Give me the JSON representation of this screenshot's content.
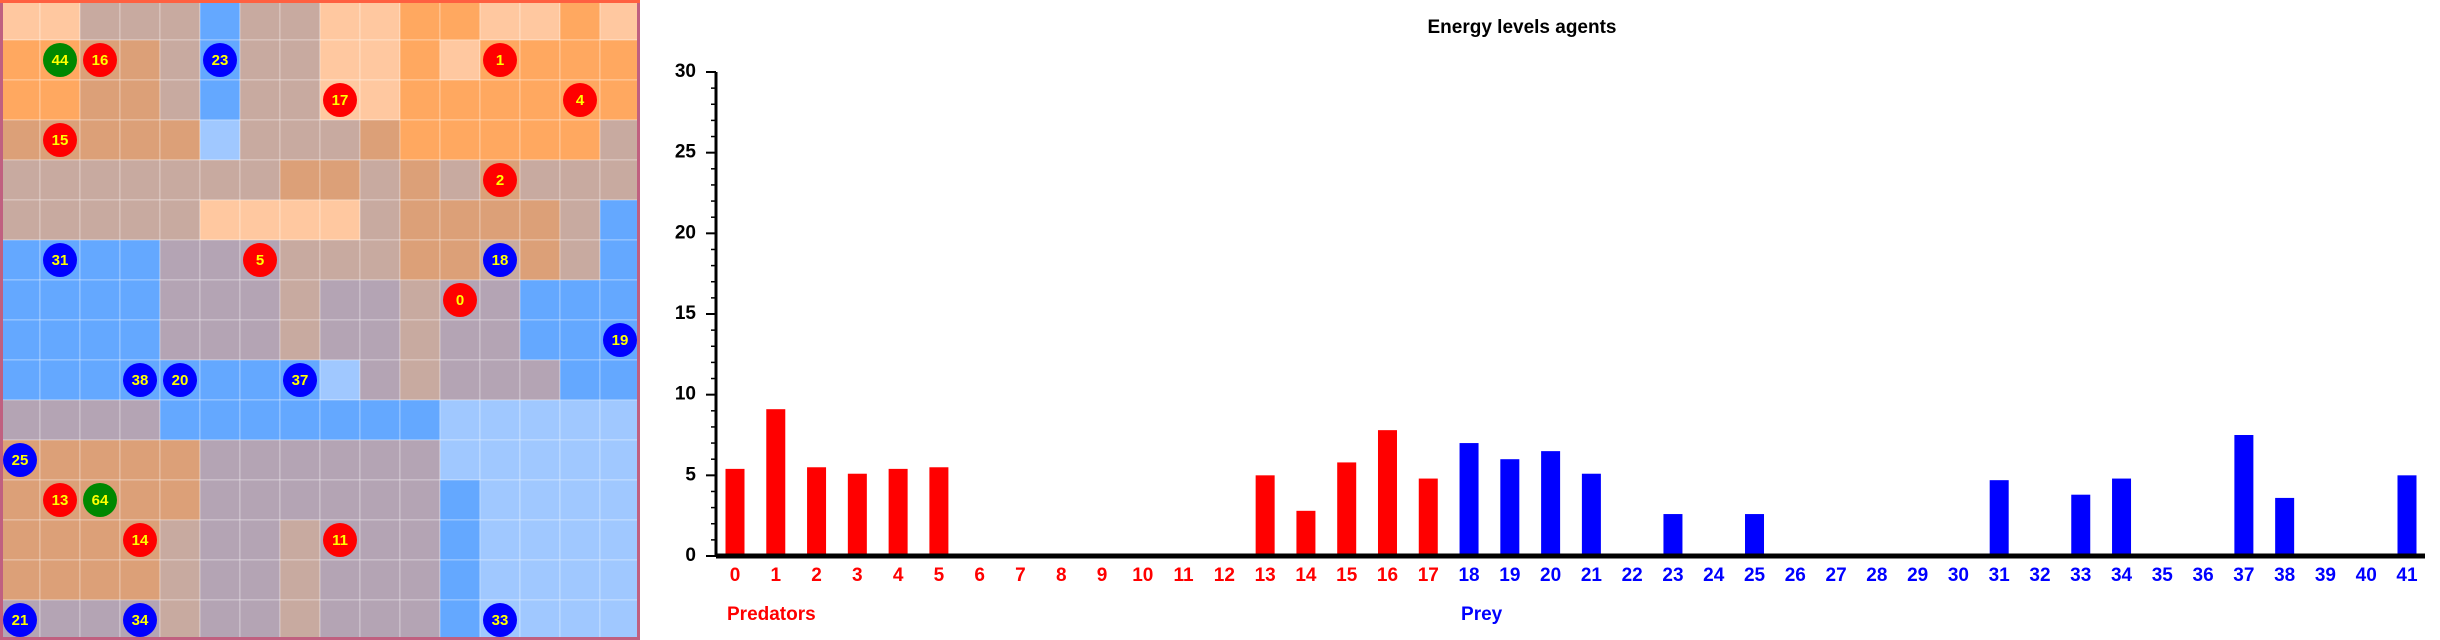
{
  "agents": [
    {
      "label": "44",
      "color": "#008800"
    },
    {
      "label": "16",
      "color": "#ff0000"
    },
    {
      "label": "23",
      "color": "#0000ff"
    },
    {
      "label": "1",
      "color": "#ff0000"
    },
    {
      "label": "17",
      "color": "#ff0000"
    },
    {
      "label": "4",
      "color": "#ff0000"
    },
    {
      "label": "15",
      "color": "#ff0000"
    },
    {
      "label": "2",
      "color": "#ff0000"
    },
    {
      "label": "31",
      "color": "#0000ff"
    },
    {
      "label": "5",
      "color": "#ff0000"
    },
    {
      "label": "18",
      "color": "#0000ff"
    },
    {
      "label": "0",
      "color": "#ff0000"
    },
    {
      "label": "19",
      "color": "#0000ff"
    },
    {
      "label": "38",
      "color": "#0000ff"
    },
    {
      "label": "20",
      "color": "#0000ff"
    },
    {
      "label": "37",
      "color": "#0000ff"
    },
    {
      "label": "25",
      "color": "#0000ff"
    },
    {
      "label": "13",
      "color": "#ff0000"
    },
    {
      "label": "64",
      "color": "#008800"
    },
    {
      "label": "14",
      "color": "#ff0000"
    },
    {
      "label": "11",
      "color": "#ff0000"
    },
    {
      "label": "21",
      "color": "#0000ff"
    },
    {
      "label": "34",
      "color": "#0000ff"
    },
    {
      "label": "33",
      "color": "#0000ff"
    }
  ],
  "chart_data": {
    "type": "bar",
    "title": "Energy levels agents",
    "categories": [
      "0",
      "1",
      "2",
      "3",
      "4",
      "5",
      "6",
      "7",
      "8",
      "9",
      "10",
      "11",
      "12",
      "13",
      "14",
      "15",
      "16",
      "17",
      "18",
      "19",
      "20",
      "21",
      "22",
      "23",
      "24",
      "25",
      "26",
      "27",
      "28",
      "29",
      "30",
      "31",
      "32",
      "33",
      "34",
      "35",
      "36",
      "37",
      "38",
      "39",
      "40",
      "41"
    ],
    "series": [
      {
        "name": "Predators",
        "color": "#ff0000",
        "values": [
          5.4,
          9.1,
          5.5,
          5.1,
          5.4,
          5.5,
          0,
          0,
          0,
          0,
          0,
          0,
          0,
          5.0,
          2.8,
          5.8,
          7.8,
          4.8,
          null,
          null,
          null,
          null,
          null,
          null,
          null,
          null,
          null,
          null,
          null,
          null,
          null,
          null,
          null,
          null,
          null,
          null,
          null,
          null,
          null,
          null,
          null,
          null
        ]
      },
      {
        "name": "Prey",
        "color": "#0000ff",
        "values": [
          null,
          null,
          null,
          null,
          null,
          null,
          null,
          null,
          null,
          null,
          null,
          null,
          null,
          null,
          null,
          null,
          null,
          null,
          7.0,
          6.0,
          6.5,
          5.1,
          0,
          2.6,
          0,
          2.6,
          0,
          0,
          0,
          0,
          0,
          4.7,
          0,
          3.8,
          4.8,
          0,
          0,
          7.5,
          3.6,
          0,
          0,
          5.0
        ]
      }
    ],
    "ylim": [
      0,
      30
    ],
    "yticks": [
      0,
      5,
      10,
      15,
      20,
      25,
      30
    ],
    "grid": false
  }
}
